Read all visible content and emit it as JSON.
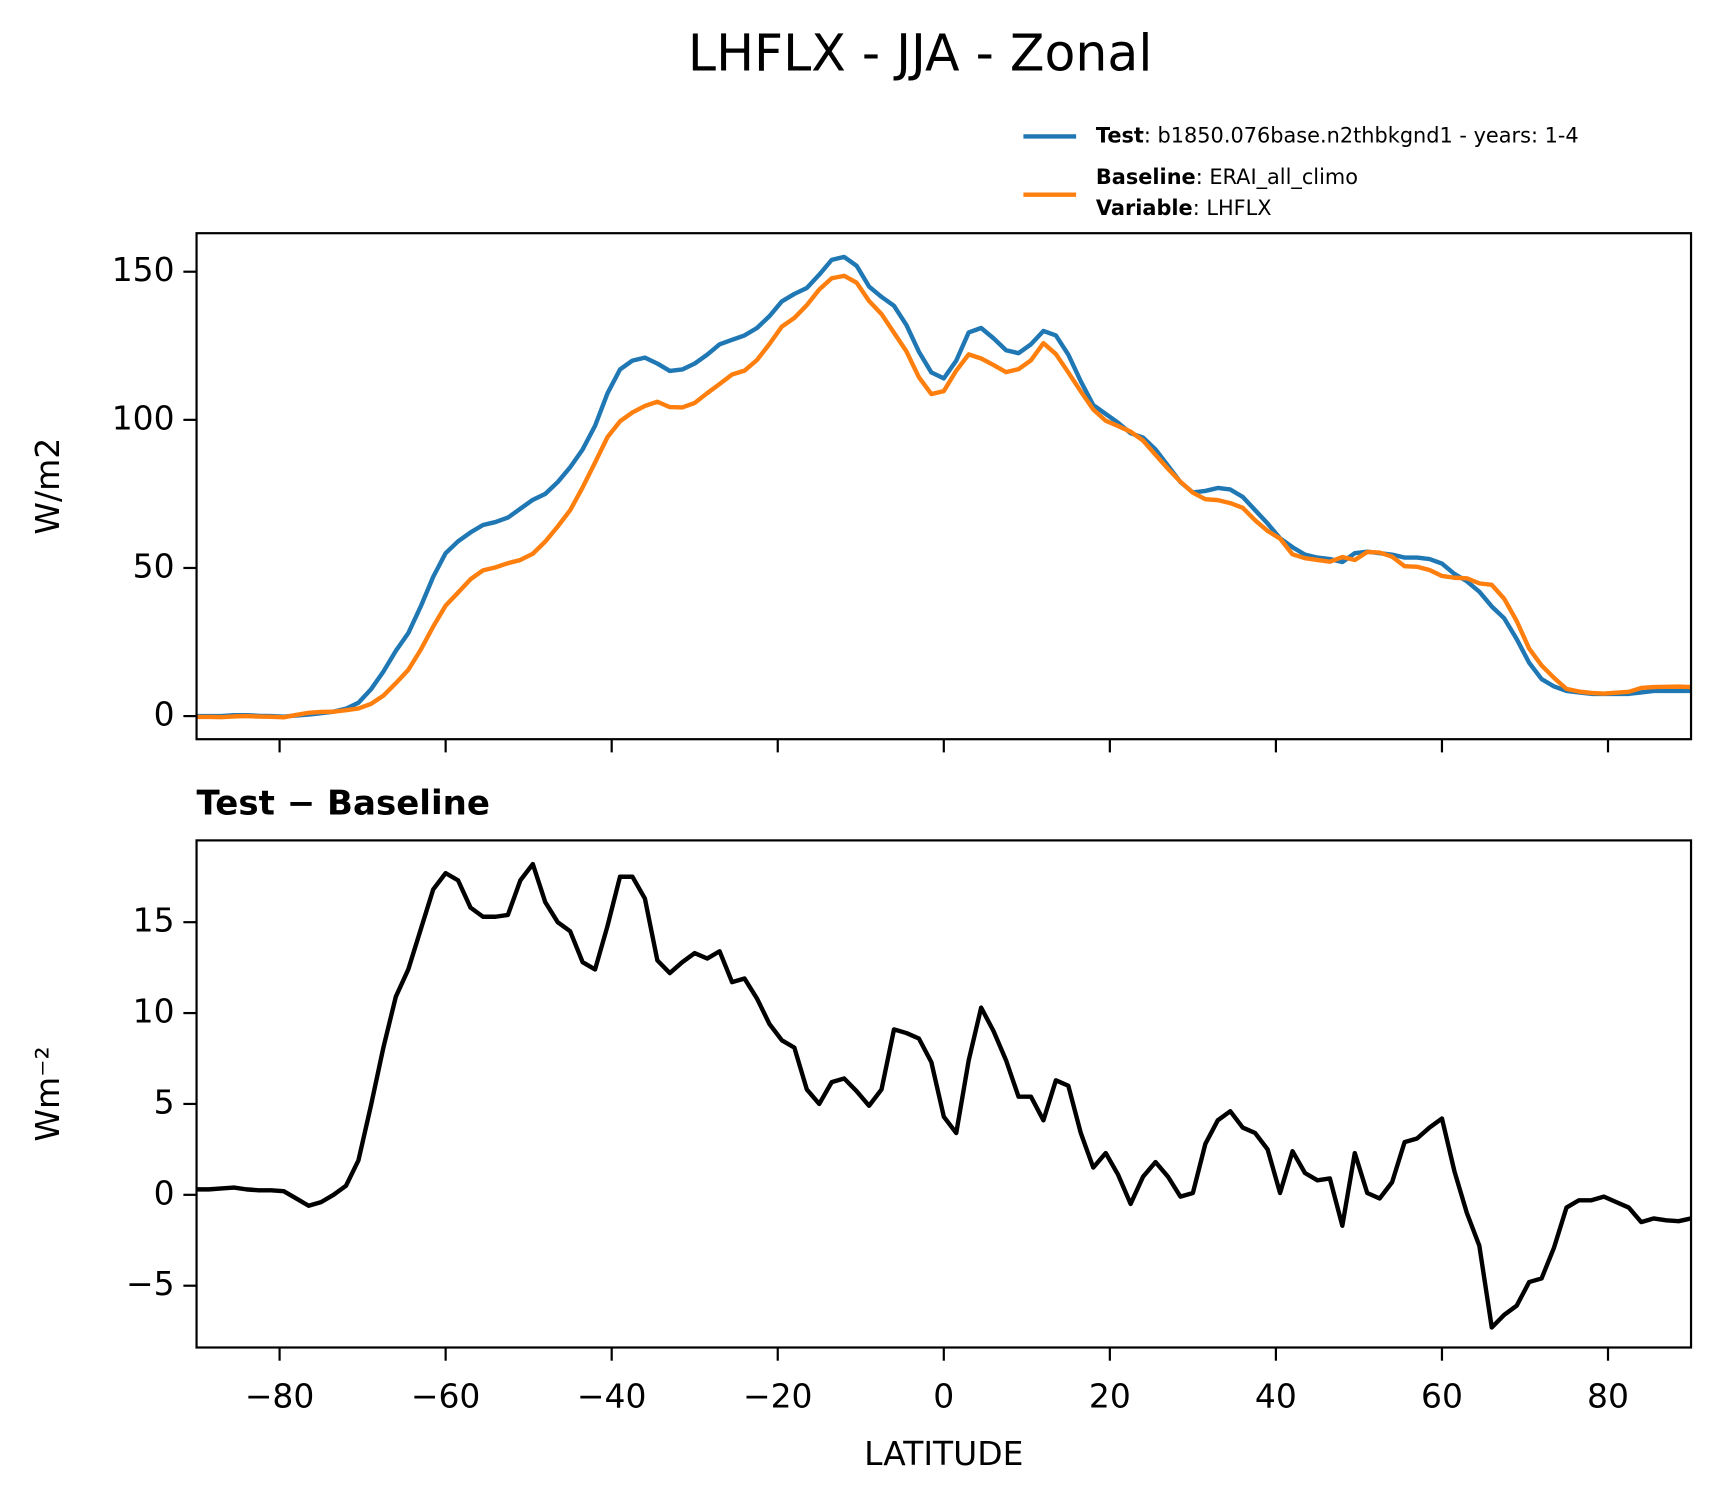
{
  "title": "LHFLX - JJA - Zonal",
  "chart_data": [
    {
      "type": "line",
      "ylabel": "W/m2",
      "legend": "upper right",
      "show_xticklabels": false,
      "x": [
        -90,
        -88.5,
        -87,
        -85.5,
        -84,
        -82.5,
        -81,
        -79.5,
        -78,
        -76.5,
        -75,
        -73.5,
        -72,
        -70.5,
        -69,
        -67.5,
        -66,
        -64.5,
        -63,
        -61.5,
        -60,
        -58.5,
        -57,
        -55.5,
        -54,
        -52.5,
        -51,
        -49.5,
        -48,
        -46.5,
        -45,
        -43.5,
        -42,
        -40.5,
        -39,
        -37.5,
        -36,
        -34.5,
        -33,
        -31.5,
        -30,
        -28.5,
        -27,
        -25.5,
        -24,
        -22.5,
        -21,
        -19.5,
        -18,
        -16.5,
        -15,
        -13.5,
        -12,
        -10.5,
        -9,
        -7.5,
        -6,
        -4.5,
        -3,
        -1.5,
        0,
        1.5,
        3,
        4.5,
        6,
        7.5,
        9,
        10.5,
        12,
        13.5,
        15,
        16.5,
        18,
        19.5,
        21,
        22.5,
        24,
        25.5,
        27,
        28.5,
        30,
        31.5,
        33,
        34.5,
        36,
        37.5,
        39,
        40.5,
        42,
        43.5,
        45,
        46.5,
        48,
        49.5,
        51,
        52.5,
        54,
        55.5,
        57,
        58.5,
        60,
        61.5,
        63,
        64.5,
        66,
        67.5,
        69,
        70.5,
        72,
        73.5,
        75,
        76.5,
        78,
        79.5,
        81,
        82.5,
        84,
        85.5,
        87,
        88.5,
        90
      ],
      "series": [
        {
          "name": "Test",
          "legend_label": ": b1850.076base.n2thbkgnd1 - years: 1-4",
          "color": "#1f77b4",
          "values": [
            0,
            0,
            0,
            0.3,
            0.3,
            0.1,
            0,
            -0.2,
            0.2,
            0.5,
            1,
            1.5,
            2.5,
            4.5,
            9,
            15,
            22,
            28,
            37,
            47,
            55,
            59,
            62,
            64.5,
            65.5,
            67,
            70,
            73,
            75,
            79,
            84,
            90,
            98,
            109,
            117,
            120,
            121,
            119,
            116.5,
            117,
            119,
            122,
            125.5,
            127,
            128.5,
            131,
            135,
            140,
            142.5,
            144.5,
            149,
            154,
            155,
            152,
            145,
            141.5,
            138.5,
            132,
            123,
            116,
            114,
            120,
            129.5,
            131,
            127.5,
            123.5,
            122.5,
            125.5,
            130,
            128.5,
            122,
            113,
            105,
            102,
            99,
            95.5,
            94,
            90,
            84.5,
            79,
            75.5,
            76,
            77,
            76.5,
            74,
            69.5,
            65,
            60,
            57,
            54.5,
            53.5,
            53,
            52,
            55,
            55.5,
            55,
            54.5,
            53.5,
            53.5,
            53,
            51.5,
            48,
            45.5,
            42,
            37,
            33,
            26,
            18,
            12.5,
            10,
            8.5,
            8,
            7.5,
            7.5,
            7.5,
            7.5,
            8,
            8.5,
            8.5,
            8.5,
            8.5
          ]
        },
        {
          "name": "Baseline",
          "legend_label": ": ERAI_all_climo",
          "color": "#ff7f0e",
          "values": [
            -0.3,
            -0.3,
            -0.35,
            -0.1,
            0,
            -0.15,
            -0.25,
            -0.4,
            0.4,
            1.1,
            1.4,
            1.5,
            2,
            2.6,
            4.1,
            6.9,
            11.1,
            15.6,
            22.4,
            30.2,
            37.3,
            41.7,
            46.2,
            49.2,
            50.2,
            51.6,
            52.7,
            54.8,
            58.9,
            64,
            69.5,
            77.2,
            85.6,
            94.2,
            99.5,
            102.5,
            104.7,
            106.1,
            104.3,
            104.2,
            105.7,
            109,
            112.1,
            115.3,
            116.6,
            120.2,
            125.6,
            131.5,
            134.4,
            138.7,
            144,
            147.8,
            148.6,
            146.3,
            140.1,
            135.7,
            129.4,
            123.1,
            114.4,
            108.7,
            109.7,
            116.6,
            122.1,
            120.7,
            118.5,
            116.1,
            117.1,
            120.1,
            125.9,
            122.2,
            116,
            109.6,
            103.5,
            99.7,
            97.9,
            96,
            93,
            88.2,
            83.5,
            79.1,
            75.4,
            73.2,
            72.9,
            71.9,
            70.3,
            66.1,
            62.5,
            59.9,
            54.6,
            53.3,
            52.7,
            52.1,
            53.7,
            52.7,
            55.4,
            55.2,
            53.8,
            50.6,
            50.4,
            49.3,
            47.3,
            46.7,
            46.5,
            44.8,
            44.3,
            39.6,
            32.1,
            22.8,
            17.1,
            12.9,
            9.2,
            8.3,
            7.8,
            7.6,
            7.9,
            8.2,
            9.5,
            9.8,
            9.9,
            9.95,
            9.8
          ]
        }
      ],
      "legend_extra": {
        "name": "Variable",
        "legend_label": ": LHFLX"
      },
      "xlim": [
        -90,
        90
      ],
      "xticks": [
        -80,
        -60,
        -40,
        -20,
        0,
        20,
        40,
        60,
        80
      ],
      "ylim": [
        -7.8,
        163
      ],
      "yticks": [
        0,
        50,
        100,
        150
      ]
    },
    {
      "type": "line",
      "title": "Test − Baseline",
      "xlabel": "LATITUDE",
      "ylabel": "Wm⁻²",
      "show_xticklabels": true,
      "color": "#000000",
      "x": [
        -90,
        -88.5,
        -87,
        -85.5,
        -84,
        -82.5,
        -81,
        -79.5,
        -78,
        -76.5,
        -75,
        -73.5,
        -72,
        -70.5,
        -69,
        -67.5,
        -66,
        -64.5,
        -63,
        -61.5,
        -60,
        -58.5,
        -57,
        -55.5,
        -54,
        -52.5,
        -51,
        -49.5,
        -48,
        -46.5,
        -45,
        -43.5,
        -42,
        -40.5,
        -39,
        -37.5,
        -36,
        -34.5,
        -33,
        -31.5,
        -30,
        -28.5,
        -27,
        -25.5,
        -24,
        -22.5,
        -21,
        -19.5,
        -18,
        -16.5,
        -15,
        -13.5,
        -12,
        -10.5,
        -9,
        -7.5,
        -6,
        -4.5,
        -3,
        -1.5,
        0,
        1.5,
        3,
        4.5,
        6,
        7.5,
        9,
        10.5,
        12,
        13.5,
        15,
        16.5,
        18,
        19.5,
        21,
        22.5,
        24,
        25.5,
        27,
        28.5,
        30,
        31.5,
        33,
        34.5,
        36,
        37.5,
        39,
        40.5,
        42,
        43.5,
        45,
        46.5,
        48,
        49.5,
        51,
        52.5,
        54,
        55.5,
        57,
        58.5,
        60,
        61.5,
        63,
        64.5,
        66,
        67.5,
        69,
        70.5,
        72,
        73.5,
        75,
        76.5,
        78,
        79.5,
        81,
        82.5,
        84,
        85.5,
        87,
        88.5,
        90
      ],
      "values": [
        0.3,
        0.3,
        0.35,
        0.4,
        0.3,
        0.25,
        0.25,
        0.2,
        -0.2,
        -0.6,
        -0.4,
        0,
        0.5,
        1.9,
        4.9,
        8.1,
        10.9,
        12.4,
        14.6,
        16.8,
        17.7,
        17.3,
        15.8,
        15.3,
        15.3,
        15.4,
        17.3,
        18.2,
        16.1,
        15,
        14.5,
        12.8,
        12.4,
        14.8,
        17.5,
        17.5,
        16.3,
        12.9,
        12.2,
        12.8,
        13.3,
        13,
        13.4,
        11.7,
        11.9,
        10.8,
        9.4,
        8.5,
        8.1,
        5.8,
        5,
        6.2,
        6.4,
        5.7,
        4.9,
        5.8,
        9.1,
        8.9,
        8.6,
        7.3,
        4.3,
        3.4,
        7.4,
        10.3,
        9,
        7.4,
        5.4,
        5.4,
        4.1,
        6.3,
        6,
        3.4,
        1.5,
        2.3,
        1.1,
        -0.5,
        1,
        1.8,
        1,
        -0.1,
        0.1,
        2.8,
        4.1,
        4.6,
        3.7,
        3.4,
        2.5,
        0.1,
        2.4,
        1.2,
        0.8,
        0.9,
        -1.7,
        2.3,
        0.1,
        -0.2,
        0.7,
        2.9,
        3.1,
        3.7,
        4.2,
        1.3,
        -1,
        -2.8,
        -7.3,
        -6.6,
        -6.1,
        -4.8,
        -4.6,
        -2.9,
        -0.7,
        -0.3,
        -0.3,
        -0.1,
        -0.4,
        -0.7,
        -1.5,
        -1.3,
        -1.4,
        -1.45,
        -1.3
      ],
      "xlim": [
        -90,
        90
      ],
      "xticks": [
        {
          "value": -80,
          "label": "−80"
        },
        {
          "value": -60,
          "label": "−60"
        },
        {
          "value": -40,
          "label": "−40"
        },
        {
          "value": -20,
          "label": "−20"
        },
        0,
        20,
        40,
        60,
        80
      ],
      "ylim": [
        -8.4,
        19.5
      ],
      "yticks": [
        {
          "value": -5,
          "label": "−5"
        },
        0,
        5,
        10,
        15
      ]
    }
  ]
}
